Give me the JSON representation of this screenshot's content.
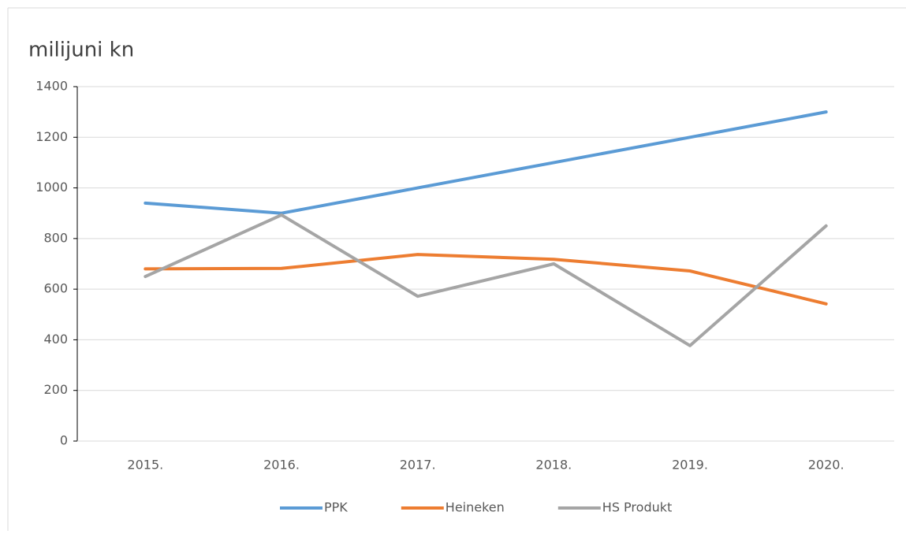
{
  "chart_data": {
    "type": "line",
    "title": "milijuni kn",
    "categories": [
      "2015.",
      "2016.",
      "2017.",
      "2018.",
      "2019.",
      "2020."
    ],
    "series": [
      {
        "name": "PPK",
        "color": "#5b9bd5",
        "values": [
          940,
          900,
          1000,
          1100,
          1200,
          1300
        ]
      },
      {
        "name": "Heineken",
        "color": "#ed7d31",
        "values": [
          680,
          682,
          737,
          718,
          672,
          542
        ]
      },
      {
        "name": "HS Produkt",
        "color": "#a5a5a5",
        "values": [
          650,
          893,
          572,
          700,
          377,
          850
        ]
      }
    ],
    "ylim": [
      0,
      1400
    ],
    "yticks": [
      0,
      200,
      400,
      600,
      800,
      1000,
      1200,
      1400
    ],
    "grid": true,
    "legend": "bottom"
  }
}
